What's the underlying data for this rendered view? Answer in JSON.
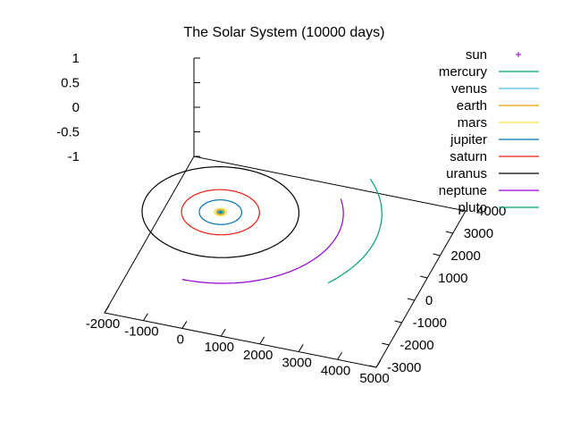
{
  "chart_data": {
    "type": "line",
    "title": "The Solar System (10000 days)",
    "xlabel": "",
    "ylabel": "",
    "zlabel": "",
    "xlim": [
      -2000,
      5000
    ],
    "ylim": [
      -3000,
      4000
    ],
    "zlim": [
      -1,
      1
    ],
    "x_ticks": [
      -2000,
      -1000,
      0,
      1000,
      2000,
      3000,
      4000,
      5000
    ],
    "y_ticks": [
      -3000,
      -2000,
      -1000,
      0,
      1000,
      2000,
      3000,
      4000
    ],
    "z_ticks": [
      -1,
      -0.5,
      0,
      0.5,
      1
    ],
    "z_tick_labels": [
      "-1",
      "-0.5",
      "0",
      "0.5",
      "1"
    ],
    "legend_position": "top-right",
    "series": [
      {
        "name": "sun",
        "color": "#9400d3",
        "style": "point",
        "orbit_radius": 0
      },
      {
        "name": "mercury",
        "color": "#009e73",
        "style": "line",
        "orbit_radius": 39
      },
      {
        "name": "venus",
        "color": "#56b4e9",
        "style": "line",
        "orbit_radius": 72
      },
      {
        "name": "earth",
        "color": "#e69f00",
        "style": "line",
        "orbit_radius": 100
      },
      {
        "name": "mars",
        "color": "#f0e442",
        "style": "line",
        "orbit_radius": 152
      },
      {
        "name": "jupiter",
        "color": "#0072b2",
        "style": "line",
        "orbit_radius": 520
      },
      {
        "name": "saturn",
        "color": "#e51e10",
        "style": "line",
        "orbit_radius": 954
      },
      {
        "name": "uranus",
        "color": "#000000",
        "style": "line",
        "orbit_radius": 1919
      },
      {
        "name": "neptune",
        "color": "#9400d3",
        "style": "line",
        "orbit_radius": 3007,
        "arc_degrees": [
          -90,
          30
        ]
      },
      {
        "name": "pluto",
        "color": "#009e73",
        "style": "line",
        "orbit_radius": 3950,
        "arc_degrees": [
          -30,
          40
        ]
      }
    ]
  }
}
